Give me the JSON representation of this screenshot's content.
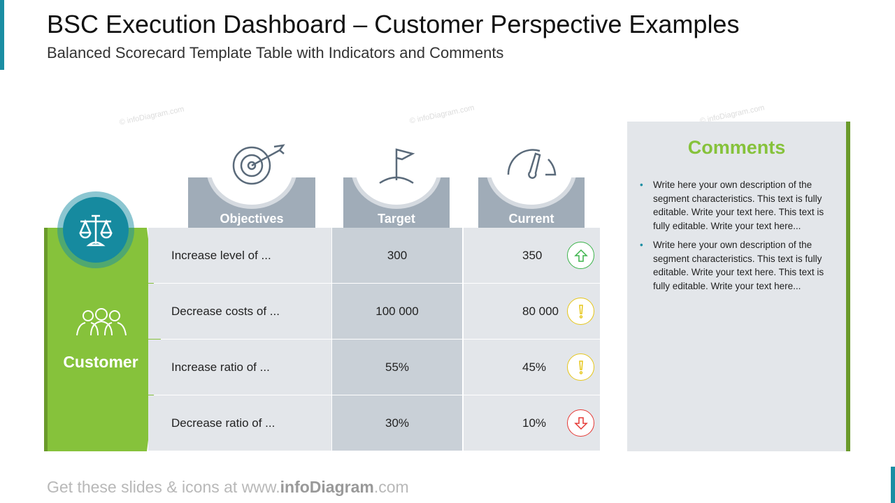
{
  "header": {
    "title": "BSC Execution Dashboard – Customer Perspective Examples",
    "subtitle": "Balanced Scorecard Template Table with Indicators and Comments"
  },
  "watermark": "© infoDiagram.com",
  "perspective": {
    "label": "Customer",
    "icon": "scales-icon",
    "sub_icon": "people-icon"
  },
  "columns": [
    {
      "label": "Objectives",
      "icon": "target-icon"
    },
    {
      "label": "Target",
      "icon": "flag-icon"
    },
    {
      "label": "Current",
      "icon": "gauge-icon"
    }
  ],
  "rows": [
    {
      "objective": "Increase level of ...",
      "target": "300",
      "current": "350",
      "indicator": "up",
      "color": "#3cb44b"
    },
    {
      "objective": "Decrease costs of ...",
      "target": "100 000",
      "current": "80 000",
      "indicator": "warning",
      "color": "#e6c619"
    },
    {
      "objective": "Increase ratio of ...",
      "target": "55%",
      "current": "45%",
      "indicator": "warning",
      "color": "#e6c619"
    },
    {
      "objective": "Decrease ratio of ...",
      "target": "30%",
      "current": "10%",
      "indicator": "down",
      "color": "#e53935"
    }
  ],
  "comments": {
    "title": "Comments",
    "items": [
      "Write here your own description of the segment characteristics. This text is fully editable. Write your text here. This text is fully editable. Write your text here...",
      "Write here your own description of the segment characteristics. This text is fully editable. Write your text here. This text is fully editable. Write your text here..."
    ]
  },
  "footer": {
    "pre": "Get these slides & icons at www.",
    "brand": "infoDiagram",
    "post": ".com"
  }
}
